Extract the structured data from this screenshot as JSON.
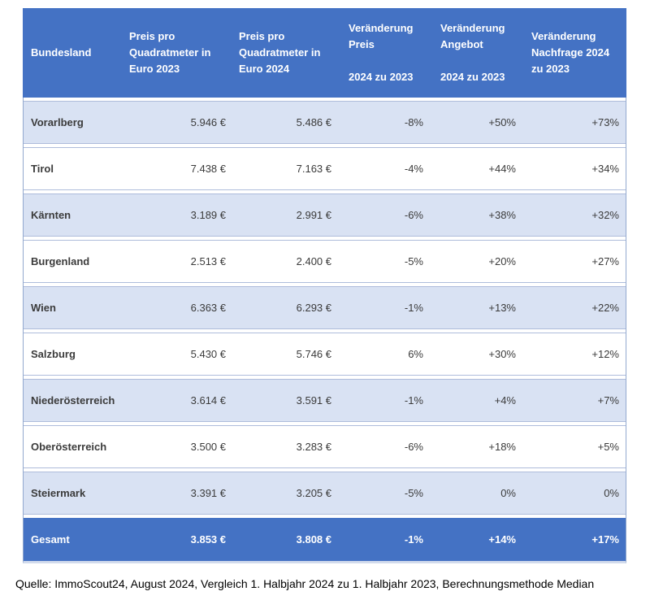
{
  "colors": {
    "header_bg": "#4472C4",
    "header_text": "#FFFFFF",
    "row_alt_bg": "#D9E2F3",
    "row_bg": "#FFFFFF",
    "row_border": "#AEBCDB",
    "outer_border": "#93A9CF",
    "body_text": "#3B3B3B"
  },
  "chart_data": {
    "type": "table",
    "columns": [
      {
        "label": "Bundesland"
      },
      {
        "label": "Preis pro Quadratmeter in Euro 2023"
      },
      {
        "label": "Preis pro Quadratmeter in Euro 2024"
      },
      {
        "label": "Veränderung Preis 2024 zu 2023",
        "line1": "Veränderung Preis",
        "line2": "2024 zu 2023"
      },
      {
        "label": "Veränderung Angebot 2024 zu 2023",
        "line1": "Veränderung Angebot",
        "line2": "2024 zu 2023"
      },
      {
        "label": "Veränderung Nachfrage 2024 zu 2023"
      }
    ],
    "rows": [
      [
        "Vorarlberg",
        "5.946 €",
        "5.486 €",
        "-8%",
        "+50%",
        "+73%"
      ],
      [
        "Tirol",
        "7.438 €",
        "7.163 €",
        "-4%",
        "+44%",
        "+34%"
      ],
      [
        "Kärnten",
        "3.189 €",
        "2.991 €",
        "-6%",
        "+38%",
        "+32%"
      ],
      [
        "Burgenland",
        "2.513 €",
        "2.400 €",
        "-5%",
        "+20%",
        "+27%"
      ],
      [
        "Wien",
        "6.363 €",
        "6.293 €",
        "-1%",
        "+13%",
        "+22%"
      ],
      [
        "Salzburg",
        "5.430 €",
        "5.746 €",
        "6%",
        "+30%",
        "+12%"
      ],
      [
        "Niederösterreich",
        "3.614 €",
        "3.591 €",
        "-1%",
        "+4%",
        "+7%"
      ],
      [
        "Oberösterreich",
        "3.500 €",
        "3.283 €",
        "-6%",
        "+18%",
        "+5%"
      ],
      [
        "Steiermark",
        "3.391 €",
        "3.205 €",
        "-5%",
        "0%",
        "0%"
      ]
    ],
    "total_row": [
      "Gesamt",
      "3.853 €",
      "3.808 €",
      "-1%",
      "+14%",
      "+17%"
    ]
  },
  "footer": {
    "source": "Quelle: ImmoScout24, August 2024, Vergleich 1. Halbjahr 2024 zu 1. Halbjahr 2023, Berechnungsmethode Median"
  }
}
